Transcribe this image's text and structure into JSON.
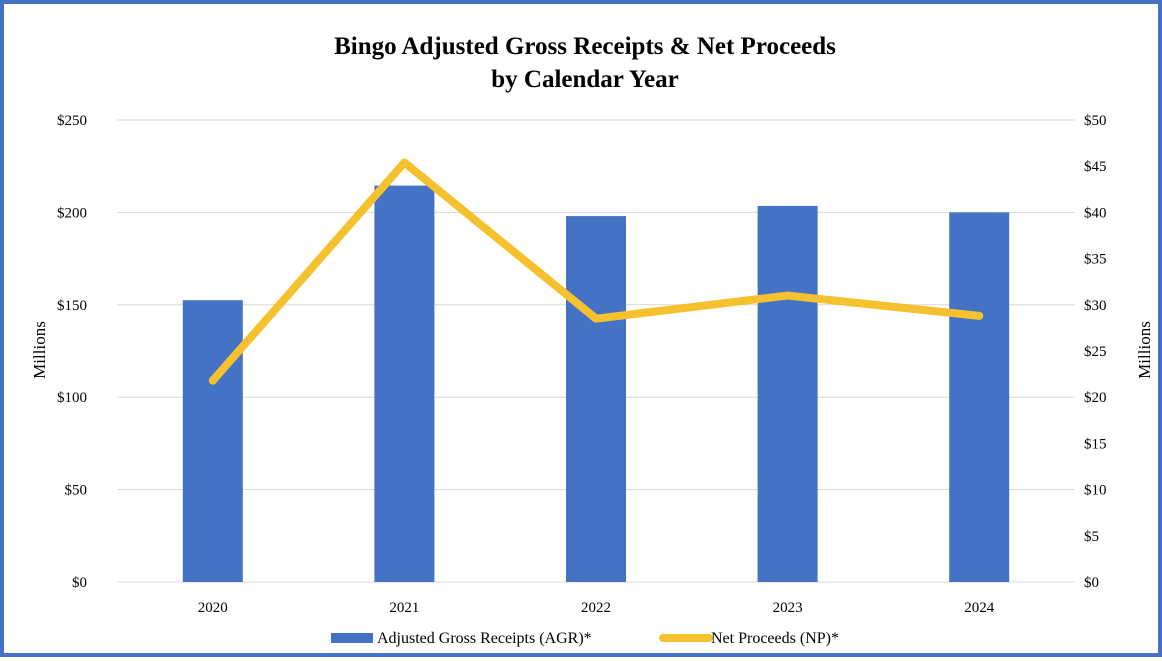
{
  "chart_data": {
    "type": "bar",
    "title_lines": [
      "Bingo Adjusted Gross Receipts & Net Proceeds",
      "by Calendar Year"
    ],
    "categories": [
      "2020",
      "2021",
      "2022",
      "2023",
      "2024"
    ],
    "series": [
      {
        "name": "Adjusted Gross Receipts (AGR)*",
        "type": "bar",
        "axis": "left",
        "color": "#4472c4",
        "values": [
          152.5,
          214.5,
          198,
          203.5,
          200
        ]
      },
      {
        "name": "Net Proceeds (NP)*",
        "type": "line",
        "axis": "right",
        "color": "#f5c12e",
        "values": [
          21.8,
          45.4,
          28.5,
          31.0,
          28.8
        ]
      }
    ],
    "y_left": {
      "label": "Millions",
      "range": [
        0,
        250
      ],
      "ticks": [
        0,
        50,
        100,
        150,
        200,
        250
      ],
      "tick_labels": [
        "$0",
        "$50",
        "$100",
        "$150",
        "$200",
        "$250"
      ]
    },
    "y_right": {
      "label": "Millions",
      "range": [
        0,
        50
      ],
      "ticks": [
        0,
        5,
        10,
        15,
        20,
        25,
        30,
        35,
        40,
        45,
        50
      ],
      "tick_labels": [
        "$0",
        "$5",
        "$10",
        "$15",
        "$20",
        "$25",
        "$30",
        "$35",
        "$40",
        "$45",
        "$50"
      ]
    },
    "grid": true,
    "legend_position": "bottom"
  }
}
